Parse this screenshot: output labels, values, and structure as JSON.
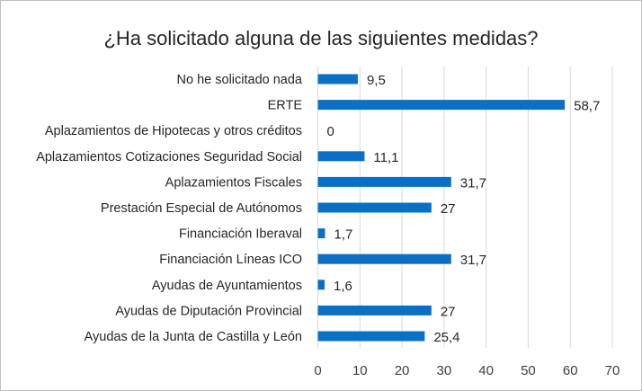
{
  "chart_data": {
    "type": "bar",
    "orientation": "horizontal",
    "title": "¿Ha solicitado alguna de las siguientes medidas?",
    "categories": [
      "No he solicitado nada",
      "ERTE",
      "Aplazamientos de Hipotecas y otros créditos",
      "Aplazamientos Cotizaciones Seguridad Social",
      "Aplazamientos Fiscales",
      "Prestación Especial de Autónomos",
      "Financiación Iberaval",
      "Financiación Líneas ICO",
      "Ayudas de Ayuntamientos",
      "Ayudas de Diputación Provincial",
      "Ayudas de la Junta de Castilla y León"
    ],
    "values": [
      9.5,
      58.7,
      0,
      11.1,
      31.7,
      27,
      1.7,
      31.7,
      1.6,
      27,
      25.4
    ],
    "data_labels": [
      "9,5",
      "58,7",
      "0",
      "11,1",
      "31,7",
      "27",
      "1,7",
      "31,7",
      "1,6",
      "27",
      "25,4"
    ],
    "xlim": [
      0,
      70
    ],
    "xticks": [
      "0",
      "10",
      "20",
      "30",
      "40",
      "50",
      "60",
      "70"
    ],
    "grid": true,
    "legend": "none",
    "bar_color": "#0a70c6"
  }
}
